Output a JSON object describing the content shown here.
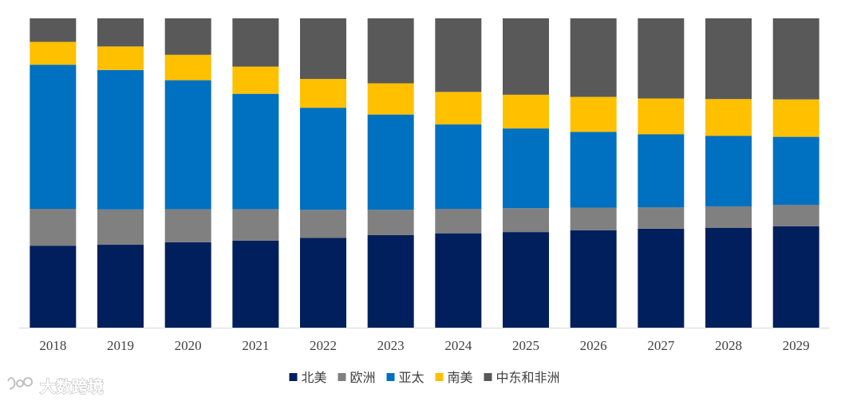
{
  "chart_data": {
    "type": "bar",
    "stacked": true,
    "normalized": true,
    "categories": [
      "2018",
      "2019",
      "2020",
      "2021",
      "2022",
      "2023",
      "2024",
      "2025",
      "2026",
      "2027",
      "2028",
      "2029"
    ],
    "series": [
      {
        "name": "北美",
        "color": "#001f5c",
        "values": [
          26.5,
          26.8,
          27.6,
          28.1,
          29.0,
          29.9,
          30.5,
          30.9,
          31.5,
          32.0,
          32.3,
          32.8
        ]
      },
      {
        "name": "欧洲",
        "color": "#808080",
        "values": [
          11.9,
          11.4,
          10.7,
          10.2,
          9.1,
          8.2,
          7.9,
          7.7,
          7.3,
          6.9,
          6.9,
          6.9
        ]
      },
      {
        "name": "亚太",
        "color": "#0070c0",
        "values": [
          46.6,
          45.1,
          41.7,
          37.3,
          33.0,
          30.8,
          27.3,
          25.8,
          24.5,
          23.6,
          22.8,
          22.0
        ]
      },
      {
        "name": "南美",
        "color": "#ffc000",
        "values": [
          7.4,
          7.6,
          8.2,
          8.8,
          9.3,
          10.1,
          10.5,
          10.9,
          11.3,
          11.6,
          11.9,
          12.1
        ]
      },
      {
        "name": "中东和非洲",
        "color": "#595959",
        "values": [
          7.6,
          9.1,
          11.8,
          15.6,
          19.6,
          21.0,
          23.8,
          24.7,
          25.4,
          25.9,
          26.1,
          26.2
        ]
      }
    ],
    "ylim": [
      0,
      100
    ],
    "legend_position": "bottom",
    "grid": false
  },
  "watermark": {
    "text": "大数跨境"
  }
}
